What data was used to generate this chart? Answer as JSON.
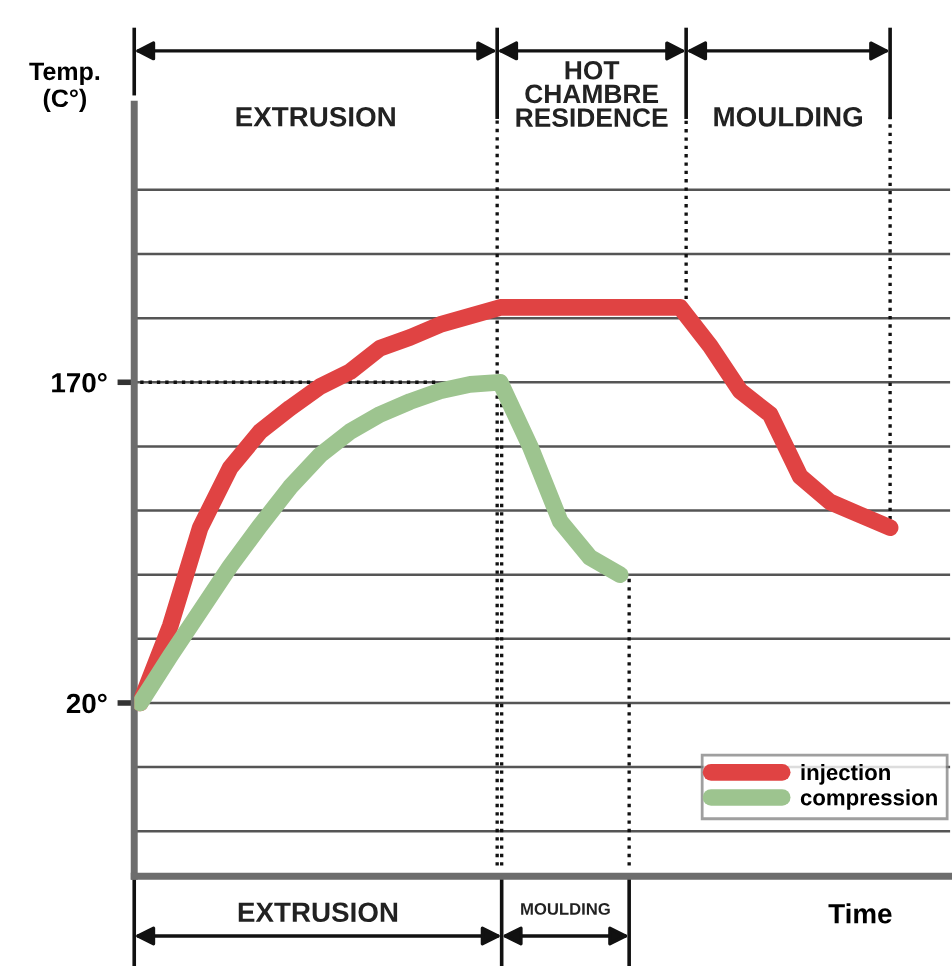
{
  "chart_data": {
    "type": "line",
    "xlabel": "Time",
    "ylabel": "Temp.\n(C°)",
    "categories": [
      null,
      null,
      null,
      null,
      null,
      null,
      null,
      null,
      null,
      null,
      null,
      null,
      null,
      null,
      null,
      null,
      null,
      null,
      null,
      null,
      null,
      null,
      null,
      null,
      null,
      null,
      null
    ],
    "series": [
      {
        "name": "injection",
        "color": "#e04343",
        "values": [
          20,
          56,
          102,
          130,
          147,
          158,
          168,
          175,
          186,
          191,
          197,
          201,
          205,
          205,
          205,
          205,
          205,
          205,
          205,
          187,
          166,
          155,
          126,
          114,
          108,
          102,
          null
        ]
      },
      {
        "name": "compression",
        "color": "#9dc48f",
        "values": [
          20,
          42,
          63,
          84,
          103,
          121,
          136,
          147,
          155,
          161,
          166,
          169,
          170,
          140,
          105,
          88,
          80,
          null,
          null,
          null,
          null,
          null,
          null,
          null,
          null,
          null,
          null
        ]
      }
    ],
    "ylim": [
      -61,
      300
    ],
    "yticks": [
      {
        "value": -40,
        "label": null
      },
      {
        "value": -10,
        "label": null
      },
      {
        "value": 20,
        "label": "20°"
      },
      {
        "value": 50,
        "label": null
      },
      {
        "value": 80,
        "label": null
      },
      {
        "value": 110,
        "label": null
      },
      {
        "value": 140,
        "label": null
      },
      {
        "value": 170,
        "label": "170°"
      },
      {
        "value": 200,
        "label": null
      },
      {
        "value": 230,
        "label": null
      },
      {
        "value": 260,
        "label": null
      }
    ],
    "grid": "y",
    "legend": "bottom right",
    "marker": "none",
    "line_style": "solid",
    "annotations": [
      "EXTRUSION",
      "HOT\nCHAMBRE\nRESIDENCE",
      "MOULDING",
      "EXTRUSION",
      "MOULDING"
    ]
  }
}
